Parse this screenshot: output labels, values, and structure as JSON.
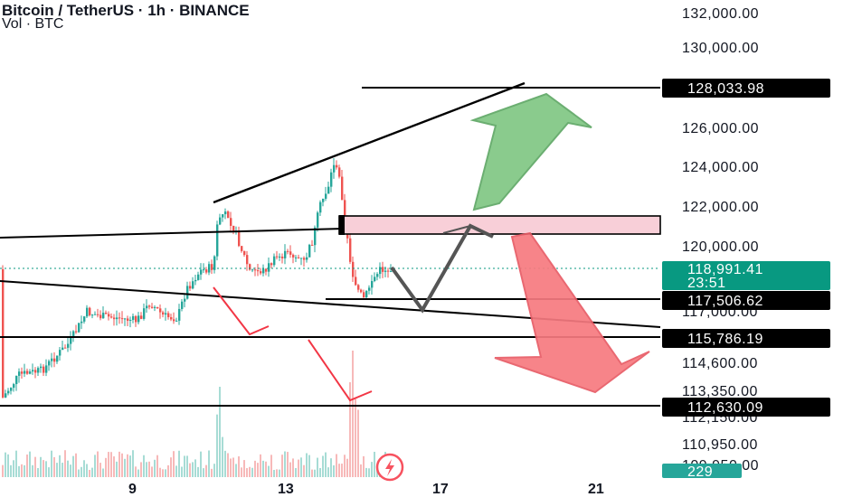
{
  "header": {
    "title": "Bitcoin / TetherUS · 1h · BINANCE",
    "subtitle": "Vol · BTC"
  },
  "colors": {
    "up": "#26a69a",
    "down": "#ef5350",
    "badge_dark": "#000000",
    "badge_price": "#089981",
    "arrow_green": "#81c784",
    "arrow_red": "#f77a80"
  },
  "chart_data": {
    "type": "candlestick",
    "price_scale_labels": [
      "132,000.00",
      "130,000.00",
      "126,000.00",
      "124,000.00",
      "122,000.00",
      "120,000.00",
      "117,000.00",
      "114,600.00",
      "113,350.00",
      "112,150.00",
      "110,950.00",
      "109,950.00"
    ],
    "x_tick_labels": [
      "9",
      "13",
      "17",
      "21"
    ],
    "level_labels": [
      "128,033.98",
      "117,506.62",
      "115,786.19",
      "112,630.09"
    ],
    "current_price": "118,991.41",
    "countdown": "23:51",
    "volume_label": "229",
    "icon": "lightning-icon"
  }
}
